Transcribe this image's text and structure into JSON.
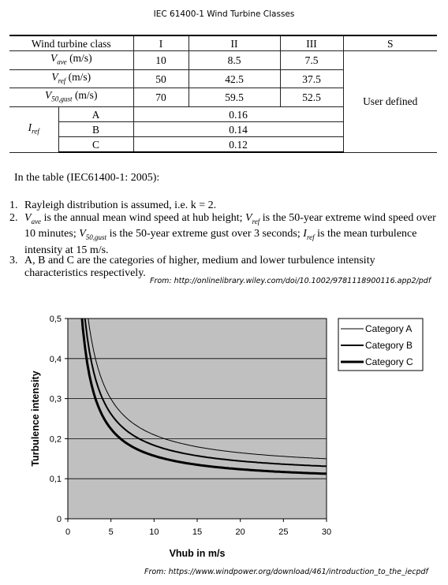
{
  "page_title": "IEC 61400-1 Wind Turbine Classes",
  "table": {
    "header": [
      "Wind turbine class",
      "I",
      "II",
      "III",
      "S"
    ],
    "rows": [
      {
        "label_main": "V",
        "label_sub": "ave",
        "label_unit": " (m/s)",
        "values": [
          "10",
          "8.5",
          "7.5"
        ]
      },
      {
        "label_main": "V",
        "label_sub": "ref",
        "label_unit": " (m/s)",
        "values": [
          "50",
          "42.5",
          "37.5"
        ]
      },
      {
        "label_main": "V",
        "label_sub": "50,gust",
        "label_unit": " (m/s)",
        "values": [
          "70",
          "59.5",
          "52.5"
        ]
      }
    ],
    "iref_main": "I",
    "iref_sub": "ref",
    "categories": [
      {
        "name": "A",
        "value": "0.16"
      },
      {
        "name": "B",
        "value": "0.14"
      },
      {
        "name": "C",
        "value": "0.12"
      }
    ],
    "s_value": "User defined"
  },
  "notes": {
    "intro": "In the table (IEC61400-1: 2005):",
    "n1_num": "1.",
    "n1": "Rayleigh distribution is assumed, i.e. k = 2.",
    "n2_num": "2.",
    "n2_a": " is the annual mean wind speed at hub height; ",
    "n2_b": " is the 50-year extreme wind speed over 10 minutes; ",
    "n2_c": " is the 50-year extreme gust over 3 seconds; ",
    "n2_d": " is the mean turbulence intensity at 15 m/s.",
    "n3_num": "3.",
    "n3": "A, B and C are the categories of higher, medium and lower turbulence intensity characteristics respectively."
  },
  "source1": "From:  http://onlinelibrary.wiley.com/doi/10.1002/9781118900116.app2/pdf",
  "source2": "From:  https://www.windpower.org/download/461/introduction_to_the_iecpdf",
  "chart_data": {
    "type": "line",
    "xlabel": "Vhub in m/s",
    "ylabel": "Turbulence intensity",
    "xlim": [
      0,
      30
    ],
    "ylim": [
      0,
      0.5
    ],
    "xticks": [
      "0",
      "5",
      "10",
      "15",
      "20",
      "25",
      "30"
    ],
    "yticks": [
      "0",
      "0,1",
      "0,2",
      "0,3",
      "0,4",
      "0,5"
    ],
    "grid": true,
    "legend_position": "top-right",
    "colors": {
      "plot_bg": "#c0c0c0",
      "line": "#000000",
      "grid": "#000000"
    },
    "series": [
      {
        "name": "Category A",
        "Iref": 0.16,
        "x": [
          2,
          3,
          4,
          5,
          6,
          8,
          10,
          12,
          15,
          20,
          25,
          30
        ],
        "values": [
          0.52,
          0.386,
          0.319,
          0.279,
          0.252,
          0.219,
          0.2,
          0.187,
          0.174,
          0.162,
          0.155,
          0.15
        ]
      },
      {
        "name": "Category B",
        "Iref": 0.14,
        "x": [
          2,
          3,
          4,
          5,
          6,
          8,
          10,
          12,
          15,
          20,
          25,
          30
        ],
        "values": [
          0.455,
          0.338,
          0.279,
          0.244,
          0.221,
          0.191,
          0.175,
          0.164,
          0.152,
          0.142,
          0.135,
          0.131
        ]
      },
      {
        "name": "Category C",
        "Iref": 0.12,
        "x": [
          2,
          3,
          4,
          5,
          6,
          8,
          10,
          12,
          15,
          20,
          25,
          30
        ],
        "values": [
          0.39,
          0.29,
          0.239,
          0.209,
          0.189,
          0.164,
          0.15,
          0.141,
          0.13,
          0.122,
          0.116,
          0.112
        ]
      }
    ]
  }
}
